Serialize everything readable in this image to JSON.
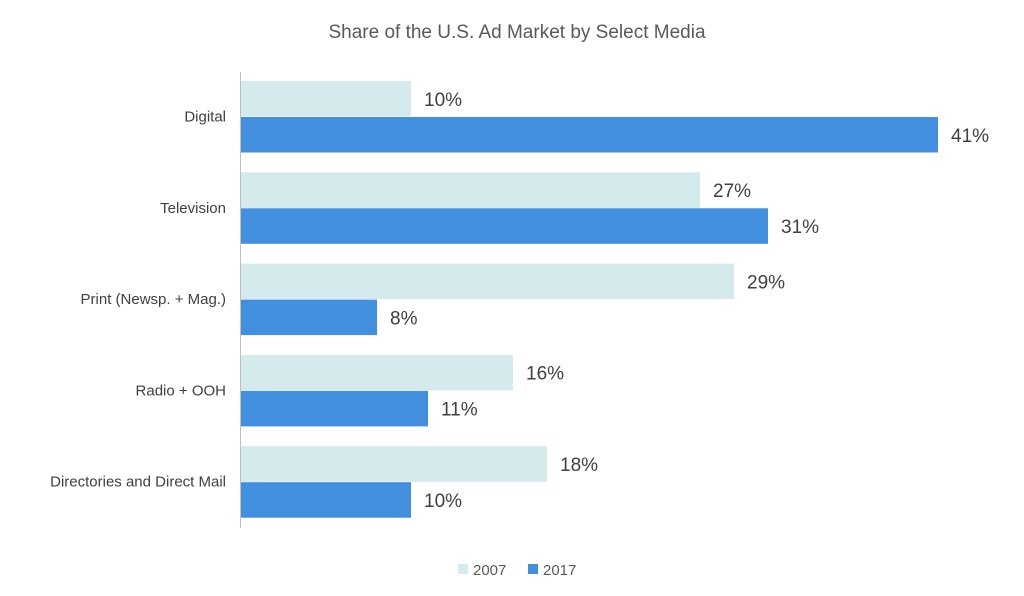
{
  "chart_data": {
    "type": "bar",
    "orientation": "horizontal",
    "title": "Share of the U.S. Ad Market by Select Media",
    "categories": [
      "Digital",
      "Television",
      "Print (Newsp. + Mag.)",
      "Radio + OOH",
      "Directories and Direct Mail"
    ],
    "series": [
      {
        "name": "2007",
        "values": [
          10,
          27,
          29,
          16,
          18
        ],
        "labels": [
          "10%",
          "27%",
          "29%",
          "16%",
          "18%"
        ],
        "color": "#d5eaed"
      },
      {
        "name": "2017",
        "values": [
          41,
          31,
          8,
          11,
          10
        ],
        "labels": [
          "41%",
          "31%",
          "8%",
          "11%",
          "10%"
        ],
        "color": "#418fde"
      }
    ],
    "xlim": [
      0,
      45
    ],
    "grid": false,
    "legend": "bottom",
    "xlabel": "",
    "ylabel": ""
  }
}
